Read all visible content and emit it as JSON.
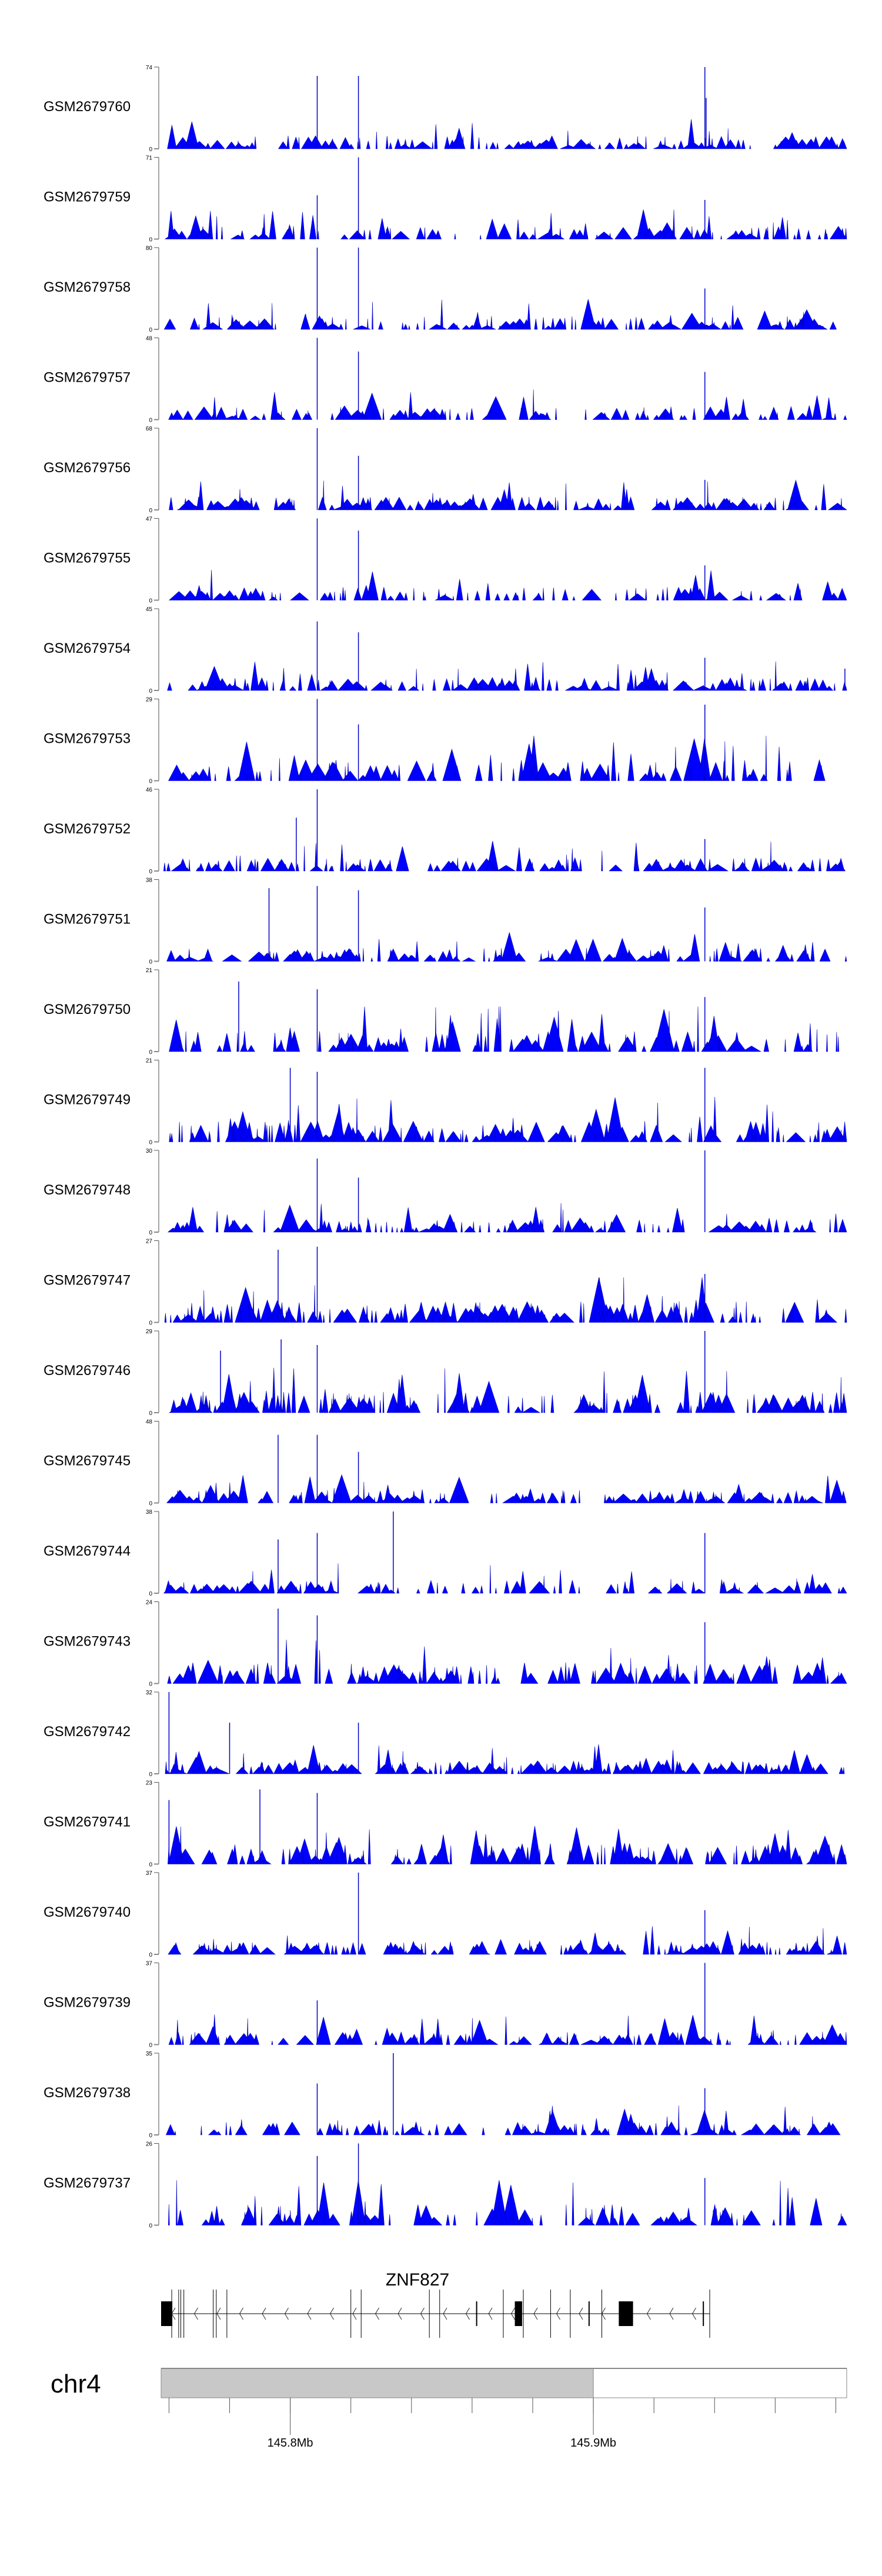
{
  "chart_data": {
    "type": "area",
    "title": "",
    "chromosome": "chr4",
    "x_unit": "Mb",
    "xlim": [
      145.7574,
      145.9836
    ],
    "x_ticks": [
      145.76,
      145.78,
      145.8,
      145.82,
      145.84,
      145.86,
      145.88,
      145.9,
      145.92,
      145.94,
      145.96,
      145.98
    ],
    "x_tick_labels": [
      {
        "value": 145.8,
        "label": "145.8Mb"
      },
      {
        "value": 145.9,
        "label": "145.9Mb"
      }
    ],
    "highlight_region": [
      145.7574,
      145.9
    ],
    "color": "#0000FF",
    "tracks": [
      {
        "name": "GSM2679760",
        "ymax": 74,
        "ymin_label": "0",
        "peaks": [
          [
            145.8089,
            66
          ],
          [
            145.8225,
            66
          ],
          [
            145.9368,
            74
          ],
          [
            145.9372,
            46
          ]
        ]
      },
      {
        "name": "GSM2679759",
        "ymax": 71,
        "ymin_label": "0",
        "peaks": [
          [
            145.8089,
            38
          ],
          [
            145.8225,
            71
          ],
          [
            145.9368,
            34
          ]
        ]
      },
      {
        "name": "GSM2679758",
        "ymax": 80,
        "ymin_label": "0",
        "peaks": [
          [
            145.8089,
            80
          ],
          [
            145.8225,
            80
          ],
          [
            145.9368,
            40
          ]
        ]
      },
      {
        "name": "GSM2679757",
        "ymax": 48,
        "ymin_label": "0",
        "peaks": [
          [
            145.8089,
            48
          ],
          [
            145.8225,
            40
          ],
          [
            145.9368,
            28
          ]
        ]
      },
      {
        "name": "GSM2679756",
        "ymax": 68,
        "ymin_label": "0",
        "peaks": [
          [
            145.8089,
            68
          ],
          [
            145.8225,
            45
          ],
          [
            145.9368,
            25
          ]
        ]
      },
      {
        "name": "GSM2679755",
        "ymax": 47,
        "ymin_label": "0",
        "peaks": [
          [
            145.8089,
            47
          ],
          [
            145.8225,
            40
          ],
          [
            145.9368,
            20
          ]
        ]
      },
      {
        "name": "GSM2679754",
        "ymax": 45,
        "ymin_label": "0",
        "peaks": [
          [
            145.8089,
            38
          ],
          [
            145.8225,
            32
          ],
          [
            145.9368,
            18
          ],
          [
            145.983,
            12
          ]
        ]
      },
      {
        "name": "GSM2679753",
        "ymax": 29,
        "ymin_label": "0",
        "peaks": [
          [
            145.8089,
            29
          ],
          [
            145.8225,
            20
          ],
          [
            145.9368,
            27
          ]
        ]
      },
      {
        "name": "GSM2679752",
        "ymax": 46,
        "ymin_label": "0",
        "peaks": [
          [
            145.8089,
            46
          ],
          [
            145.802,
            30
          ],
          [
            145.9368,
            18
          ]
        ]
      },
      {
        "name": "GSM2679751",
        "ymax": 38,
        "ymin_label": "0",
        "peaks": [
          [
            145.793,
            34
          ],
          [
            145.8089,
            35
          ],
          [
            145.8225,
            33
          ],
          [
            145.9368,
            25
          ]
        ]
      },
      {
        "name": "GSM2679750",
        "ymax": 21,
        "ymin_label": "0",
        "peaks": [
          [
            145.783,
            18
          ],
          [
            145.8089,
            16
          ],
          [
            145.9368,
            14
          ]
        ]
      },
      {
        "name": "GSM2679749",
        "ymax": 21,
        "ymin_label": "0",
        "peaks": [
          [
            145.8,
            19
          ],
          [
            145.8089,
            18
          ],
          [
            145.9368,
            19
          ]
        ]
      },
      {
        "name": "GSM2679748",
        "ymax": 30,
        "ymin_label": "0",
        "peaks": [
          [
            145.8089,
            27
          ],
          [
            145.8225,
            20
          ],
          [
            145.9368,
            30
          ]
        ]
      },
      {
        "name": "GSM2679747",
        "ymax": 27,
        "ymin_label": "0",
        "peaks": [
          [
            145.796,
            24
          ],
          [
            145.8089,
            25
          ],
          [
            145.9368,
            16
          ]
        ]
      },
      {
        "name": "GSM2679746",
        "ymax": 29,
        "ymin_label": "0",
        "peaks": [
          [
            145.777,
            22
          ],
          [
            145.797,
            26
          ],
          [
            145.8089,
            24
          ],
          [
            145.9368,
            29
          ]
        ]
      },
      {
        "name": "GSM2679745",
        "ymax": 48,
        "ymin_label": "0",
        "peaks": [
          [
            145.796,
            40
          ],
          [
            145.8089,
            40
          ],
          [
            145.8225,
            30
          ]
        ]
      },
      {
        "name": "GSM2679744",
        "ymax": 38,
        "ymin_label": "0",
        "peaks": [
          [
            145.796,
            25
          ],
          [
            145.8089,
            28
          ],
          [
            145.834,
            38
          ],
          [
            145.9368,
            28
          ]
        ]
      },
      {
        "name": "GSM2679743",
        "ymax": 24,
        "ymin_label": "0",
        "peaks": [
          [
            145.796,
            22
          ],
          [
            145.8089,
            20
          ],
          [
            145.9368,
            18
          ]
        ]
      },
      {
        "name": "GSM2679742",
        "ymax": 32,
        "ymin_label": "0",
        "peaks": [
          [
            145.76,
            32
          ],
          [
            145.78,
            20
          ],
          [
            145.8225,
            20
          ]
        ]
      },
      {
        "name": "GSM2679741",
        "ymax": 23,
        "ymin_label": "0",
        "peaks": [
          [
            145.76,
            18
          ],
          [
            145.79,
            21
          ],
          [
            145.8089,
            20
          ]
        ]
      },
      {
        "name": "GSM2679740",
        "ymax": 37,
        "ymin_label": "0",
        "peaks": [
          [
            145.8225,
            37
          ],
          [
            145.9368,
            20
          ]
        ]
      },
      {
        "name": "GSM2679739",
        "ymax": 37,
        "ymin_label": "0",
        "peaks": [
          [
            145.8089,
            20
          ],
          [
            145.9368,
            37
          ]
        ]
      },
      {
        "name": "GSM2679738",
        "ymax": 35,
        "ymin_label": "0",
        "peaks": [
          [
            145.834,
            35
          ],
          [
            145.8089,
            22
          ],
          [
            145.9368,
            20
          ]
        ]
      },
      {
        "name": "GSM2679737",
        "ymax": 26,
        "ymin_label": "0",
        "peaks": [
          [
            145.8089,
            22
          ],
          [
            145.8225,
            26
          ],
          [
            145.9368,
            15
          ]
        ]
      }
    ],
    "gene": {
      "name": "ZNF827",
      "strand": "-",
      "start": 145.7574,
      "end": 145.9384,
      "blocks": [
        {
          "start": 145.7574,
          "end": 145.7611,
          "kind": "exon"
        },
        {
          "start": 145.8741,
          "end": 145.8765,
          "kind": "exon"
        },
        {
          "start": 145.9084,
          "end": 145.9131,
          "kind": "exon"
        },
        {
          "start": 145.8615,
          "end": 145.8615,
          "kind": "short"
        },
        {
          "start": 145.8986,
          "end": 145.8986,
          "kind": "short"
        },
        {
          "start": 145.9363,
          "end": 145.9363,
          "kind": "short"
        }
      ],
      "boundaries": [
        145.7609,
        145.7632,
        145.7639,
        145.7649,
        145.7746,
        145.7756,
        145.7791,
        145.82,
        145.8234,
        145.8459,
        145.8493,
        145.8703,
        145.8769,
        145.8859,
        145.8924,
        145.9028,
        145.9384
      ]
    }
  }
}
